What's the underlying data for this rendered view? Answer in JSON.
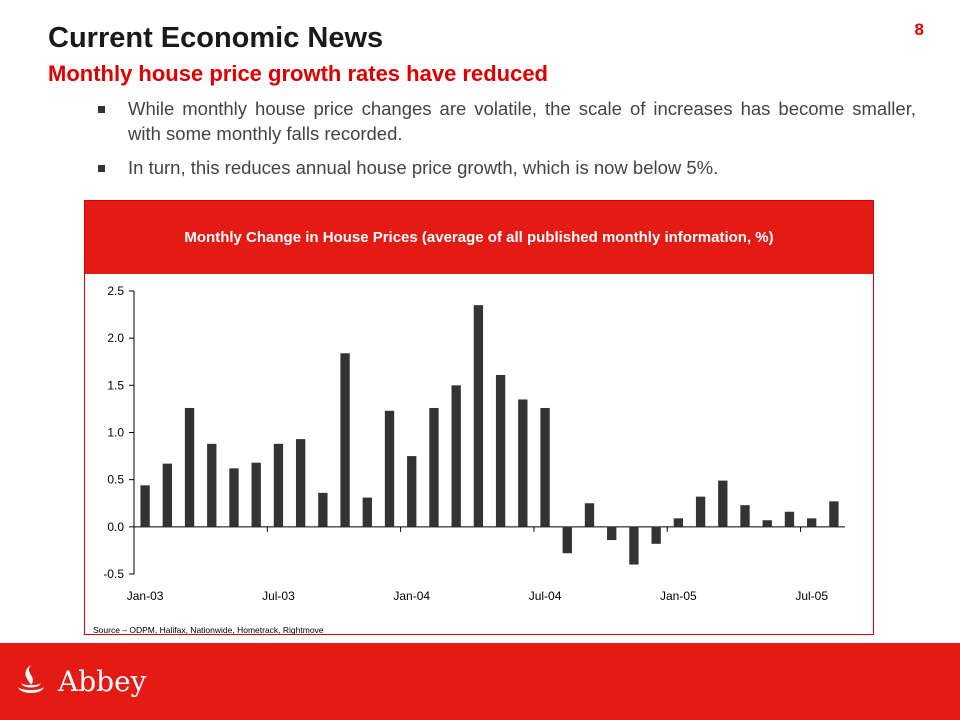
{
  "slide": {
    "title": "Current Economic News",
    "page_number": "8",
    "subtitle": "Monthly house price growth rates have reduced",
    "bullets": [
      "While monthly house price changes are volatile, the scale of increases has become smaller, with some monthly falls recorded.",
      "In turn, this reduces annual house price growth, which is now below 5%."
    ],
    "source": "Source – ODPM, Halifax, Nationwide, Hometrack, Rightmove",
    "logo_text": "Abbey"
  },
  "colors": {
    "accent": "#e41a15",
    "bar": "#333333",
    "title": "#1a1a1a",
    "subtitle": "#e00000"
  },
  "icons": {
    "logo": "abbey-flame-logo-icon",
    "bullet": "square-bullet-icon"
  },
  "chart_data": {
    "type": "bar",
    "title": "Monthly Change in House Prices  (average of all published monthly information, %)",
    "categories": [
      "Jan-03",
      "Feb-03",
      "Mar-03",
      "Apr-03",
      "May-03",
      "Jun-03",
      "Jul-03",
      "Aug-03",
      "Sep-03",
      "Oct-03",
      "Nov-03",
      "Dec-03",
      "Jan-04",
      "Feb-04",
      "Mar-04",
      "Apr-04",
      "May-04",
      "Jun-04",
      "Jul-04",
      "Aug-04",
      "Sep-04",
      "Oct-04",
      "Nov-04",
      "Dec-04",
      "Jan-05",
      "Feb-05",
      "Mar-05",
      "Apr-05",
      "May-05",
      "Jun-05",
      "Jul-05",
      "Aug-05"
    ],
    "values": [
      0.44,
      0.67,
      1.26,
      0.88,
      0.62,
      0.68,
      0.88,
      0.93,
      0.36,
      1.84,
      0.31,
      1.23,
      0.75,
      1.26,
      1.5,
      2.35,
      1.61,
      1.35,
      1.26,
      -0.28,
      0.25,
      -0.14,
      -0.4,
      -0.18,
      0.09,
      0.32,
      0.49,
      0.23,
      0.07,
      0.16,
      0.09,
      0.27
    ],
    "x_tick_labels": [
      "Jan-03",
      "Jul-03",
      "Jan-04",
      "Jul-04",
      "Jan-05",
      "Jul-05"
    ],
    "y_tick_labels": [
      "2.5",
      "2.0",
      "1.5",
      "1.0",
      "0.5",
      "0.0",
      "-0.5"
    ],
    "ylim": [
      -0.5,
      2.5
    ],
    "xlabel": "",
    "ylabel": "",
    "grid": false,
    "legend": "none"
  }
}
